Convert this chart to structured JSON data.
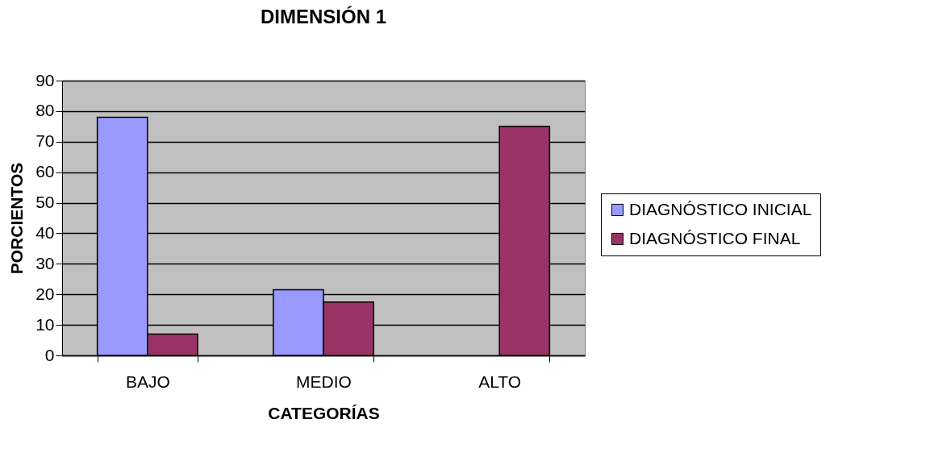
{
  "chart_data": {
    "type": "bar",
    "title": "DIMENSIÓN 1",
    "xlabel": "CATEGORÍAS",
    "ylabel": "PORCIENTOS",
    "categories": [
      "BAJO",
      "MEDIO",
      "ALTO"
    ],
    "series": [
      {
        "name": "DIAGNÓSTICO INICIAL",
        "color": "#9999ff",
        "values": [
          78,
          21.5,
          null
        ]
      },
      {
        "name": "DIAGNÓSTICO FINAL",
        "color": "#993366",
        "values": [
          7,
          17.5,
          75
        ]
      }
    ],
    "ylim": [
      0,
      90
    ],
    "yticks": [
      0,
      10,
      20,
      30,
      40,
      50,
      60,
      70,
      80,
      90
    ],
    "grid": "y",
    "legend": "right"
  }
}
